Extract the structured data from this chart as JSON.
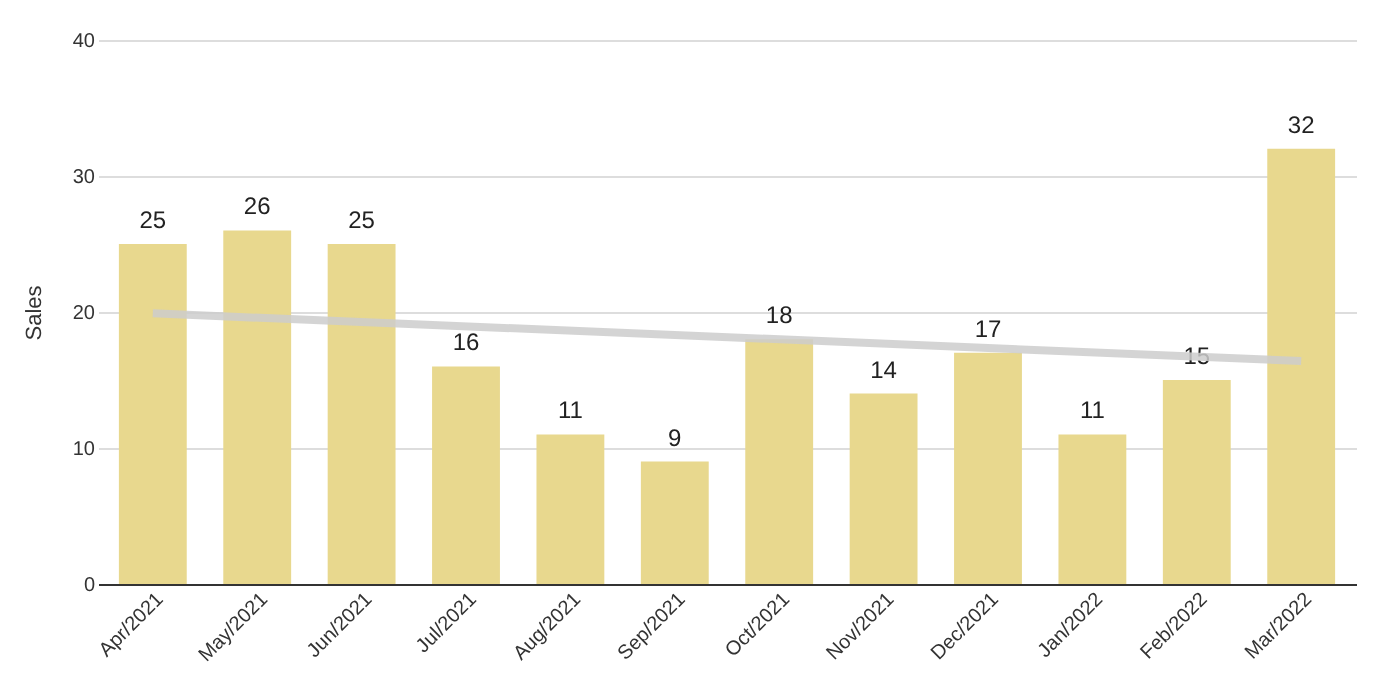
{
  "chart_data": {
    "type": "bar",
    "ylabel": "Sales",
    "categories": [
      "Apr/2021",
      "May/2021",
      "Jun/2021",
      "Jul/2021",
      "Aug/2021",
      "Sep/2021",
      "Oct/2021",
      "Nov/2021",
      "Dec/2021",
      "Jan/2022",
      "Feb/2022",
      "Mar/2022"
    ],
    "series": [
      {
        "color": "#e8d88e",
        "values": [
          25,
          26,
          25,
          16,
          11,
          9,
          18,
          14,
          17,
          11,
          15,
          32
        ],
        "value_labels": [
          "25",
          "26",
          "25",
          "16",
          "11",
          "9",
          "18",
          "14",
          "17",
          "11",
          "15",
          "32"
        ]
      },
      {
        "type": "line",
        "color": "#cccccc",
        "x": [
          "Apr/2021",
          "Mar/2022"
        ],
        "values": [
          19.9,
          16.4
        ]
      }
    ],
    "ylim": [
      0,
      40
    ],
    "yticks": [
      0,
      10,
      20,
      30,
      40
    ],
    "grid": "y"
  }
}
